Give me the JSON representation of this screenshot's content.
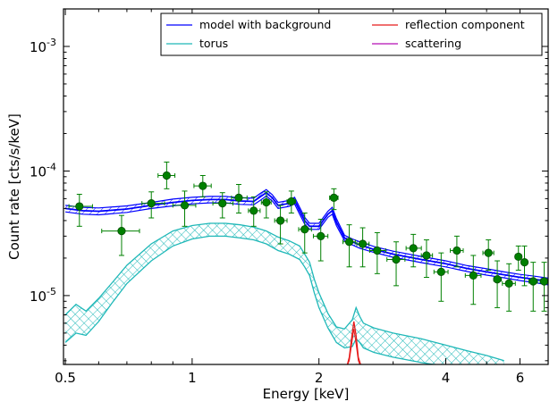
{
  "chart_data": {
    "type": "line",
    "xlabel": "Energy [keV]",
    "ylabel": "Count rate [cts/s/keV]",
    "xscale": "log",
    "yscale": "log",
    "xlim": [
      0.495,
      7.0
    ],
    "ylim": [
      2.8e-06,
      0.002
    ],
    "x_ticks": [
      {
        "value": 0.5,
        "label": "0.5"
      },
      {
        "value": 1,
        "label": "1"
      },
      {
        "value": 2,
        "label": "2"
      },
      {
        "value": 4,
        "label": "4"
      },
      {
        "value": 6,
        "label": "6"
      }
    ],
    "y_ticks": [
      {
        "value": 1e-05,
        "base": "10",
        "exp": "-5"
      },
      {
        "value": 0.0001,
        "base": "10",
        "exp": "-4"
      },
      {
        "value": 0.001,
        "base": "10",
        "exp": "-3"
      }
    ],
    "legend_position": "top-right",
    "legend_columns": 2,
    "series": [
      {
        "name": "model with background",
        "color": "#0000ff",
        "style": "line",
        "hatch": "diagonal",
        "x": [
          0.5,
          0.55,
          0.6,
          0.7,
          0.8,
          0.9,
          1.0,
          1.1,
          1.2,
          1.3,
          1.4,
          1.45,
          1.5,
          1.55,
          1.6,
          1.7,
          1.75,
          1.8,
          1.85,
          1.9,
          2.0,
          2.1,
          2.15,
          2.2,
          2.3,
          2.4,
          2.5,
          2.7,
          3.0,
          3.5,
          4.0,
          4.5,
          5.0,
          5.5,
          6.0,
          6.5,
          7.0
        ],
        "y": [
          5e-05,
          4.8e-05,
          4.75e-05,
          4.95e-05,
          5.3e-05,
          5.6e-05,
          5.8e-05,
          5.9e-05,
          5.9e-05,
          5.75e-05,
          5.7e-05,
          6.2e-05,
          6.7e-05,
          6.1e-05,
          5.3e-05,
          5.5e-05,
          5.8e-05,
          4.8e-05,
          4e-05,
          3.6e-05,
          3.6e-05,
          4.5e-05,
          4.8e-05,
          3.9e-05,
          2.9e-05,
          2.7e-05,
          2.55e-05,
          2.35e-05,
          2.15e-05,
          1.95e-05,
          1.8e-05,
          1.65e-05,
          1.55e-05,
          1.47e-05,
          1.4e-05,
          1.35e-05,
          1.3e-05
        ],
        "y_low": [
          4.7e-05,
          4.5e-05,
          4.45e-05,
          4.65e-05,
          5e-05,
          5.25e-05,
          5.45e-05,
          5.55e-05,
          5.55e-05,
          5.4e-05,
          5.35e-05,
          5.8e-05,
          6.3e-05,
          5.75e-05,
          5e-05,
          5.2e-05,
          5.45e-05,
          4.5e-05,
          3.75e-05,
          3.4e-05,
          3.4e-05,
          4.25e-05,
          4.5e-05,
          3.65e-05,
          2.75e-05,
          2.55e-05,
          2.4e-05,
          2.22e-05,
          2.03e-05,
          1.84e-05,
          1.7e-05,
          1.56e-05,
          1.46e-05,
          1.39e-05,
          1.32e-05,
          1.27e-05,
          1.22e-05
        ],
        "y_high": [
          5.3e-05,
          5.1e-05,
          5.05e-05,
          5.25e-05,
          5.6e-05,
          5.95e-05,
          6.15e-05,
          6.25e-05,
          6.25e-05,
          6.1e-05,
          6.05e-05,
          6.6e-05,
          7.1e-05,
          6.45e-05,
          5.6e-05,
          5.8e-05,
          6.15e-05,
          5.1e-05,
          4.25e-05,
          3.8e-05,
          3.8e-05,
          4.75e-05,
          5.1e-05,
          4.15e-05,
          3.05e-05,
          2.85e-05,
          2.7e-05,
          2.48e-05,
          2.27e-05,
          2.06e-05,
          1.9e-05,
          1.74e-05,
          1.64e-05,
          1.55e-05,
          1.48e-05,
          1.43e-05,
          1.38e-05
        ]
      },
      {
        "name": "torus",
        "color": "#1fb8b8",
        "style": "band",
        "hatch": "cross",
        "x": [
          0.5,
          0.53,
          0.56,
          0.6,
          0.65,
          0.7,
          0.8,
          0.9,
          1.0,
          1.1,
          1.2,
          1.3,
          1.4,
          1.5,
          1.6,
          1.7,
          1.8,
          1.85,
          1.9,
          1.95,
          2.0,
          2.1,
          2.2,
          2.3,
          2.4,
          2.45,
          2.5,
          2.55,
          2.7,
          3.0,
          3.5,
          4.0,
          4.5,
          5.0,
          5.5
        ],
        "y_low": [
          4.2e-06,
          5e-06,
          4.8e-06,
          6.2e-06,
          9e-06,
          1.25e-05,
          1.9e-05,
          2.5e-05,
          2.85e-05,
          3e-05,
          3e-05,
          2.9e-05,
          2.8e-05,
          2.6e-05,
          2.3e-05,
          2.15e-05,
          1.95e-05,
          1.7e-05,
          1.45e-05,
          1.05e-05,
          8e-06,
          5.5e-06,
          4.2e-06,
          3.8e-06,
          3.9e-06,
          4.5e-06,
          4.2e-06,
          3.8e-06,
          3.5e-06,
          3.2e-06,
          2.9e-06,
          2.7e-06,
          2.5e-06,
          2.4e-06,
          2.3e-06
        ],
        "y_high": [
          7e-06,
          8.5e-06,
          7.5e-06,
          9.5e-06,
          1.3e-05,
          1.75e-05,
          2.6e-05,
          3.3e-05,
          3.65e-05,
          3.8e-05,
          3.8e-05,
          3.7e-05,
          3.55e-05,
          3.3e-05,
          2.95e-05,
          2.75e-05,
          2.5e-05,
          2.15e-05,
          1.85e-05,
          1.35e-05,
          1.05e-05,
          7.2e-06,
          5.6e-06,
          5.4e-06,
          6.4e-06,
          8e-06,
          6.8e-06,
          6e-06,
          5.5e-06,
          5e-06,
          4.5e-06,
          4e-06,
          3.6e-06,
          3.3e-06,
          3e-06
        ]
      },
      {
        "name": "reflection component",
        "color": "#e61a1a",
        "style": "line",
        "x": [
          2.33,
          2.36,
          2.39,
          2.42,
          2.45,
          2.48,
          2.51,
          2.54
        ],
        "y": [
          2.7e-06,
          3.2e-06,
          4.5e-06,
          6.2e-06,
          4.8e-06,
          3.2e-06,
          2.8e-06,
          2.7e-06
        ],
        "y2": [
          2.7e-06,
          3e-06,
          4e-06,
          5.4e-06,
          4.1e-06,
          3e-06,
          2.7e-06,
          2.7e-06
        ]
      },
      {
        "name": "scattering",
        "color": "#b30fb3",
        "style": "line",
        "x": [],
        "y": []
      }
    ],
    "data_points": {
      "color": "#008000",
      "edge": "#004d00",
      "points": [
        {
          "x": 0.54,
          "y": 5.2e-05,
          "xlo": 0.51,
          "xhi": 0.58,
          "ylo": 3.6e-05,
          "yhi": 6.5e-05
        },
        {
          "x": 0.68,
          "y": 3.3e-05,
          "xlo": 0.61,
          "xhi": 0.75,
          "ylo": 2.1e-05,
          "yhi": 4.4e-05
        },
        {
          "x": 0.8,
          "y": 5.5e-05,
          "xlo": 0.76,
          "xhi": 0.86,
          "ylo": 4.2e-05,
          "yhi": 6.8e-05
        },
        {
          "x": 0.87,
          "y": 9.2e-05,
          "xlo": 0.83,
          "xhi": 0.91,
          "ylo": 7.2e-05,
          "yhi": 0.000118
        },
        {
          "x": 0.96,
          "y": 5.3e-05,
          "xlo": 0.9,
          "xhi": 1.02,
          "ylo": 3.6e-05,
          "yhi": 6.9e-05
        },
        {
          "x": 1.06,
          "y": 7.6e-05,
          "xlo": 1.01,
          "xhi": 1.11,
          "ylo": 6.2e-05,
          "yhi": 9.2e-05
        },
        {
          "x": 1.18,
          "y": 5.5e-05,
          "xlo": 1.12,
          "xhi": 1.25,
          "ylo": 4.2e-05,
          "yhi": 6.7e-05
        },
        {
          "x": 1.29,
          "y": 6.1e-05,
          "xlo": 1.24,
          "xhi": 1.35,
          "ylo": 4.6e-05,
          "yhi": 7.8e-05
        },
        {
          "x": 1.4,
          "y": 4.8e-05,
          "xlo": 1.36,
          "xhi": 1.45,
          "ylo": 3.6e-05,
          "yhi": 6.2e-05
        },
        {
          "x": 1.5,
          "y": 5.6e-05,
          "xlo": 1.46,
          "xhi": 1.54,
          "ylo": 4.2e-05,
          "yhi": 6.8e-05
        },
        {
          "x": 1.62,
          "y": 4e-05,
          "xlo": 1.57,
          "xhi": 1.68,
          "ylo": 2.6e-05,
          "yhi": 5.3e-05
        },
        {
          "x": 1.72,
          "y": 5.7e-05,
          "xlo": 1.68,
          "xhi": 1.76,
          "ylo": 4.6e-05,
          "yhi": 6.9e-05
        },
        {
          "x": 1.85,
          "y": 3.4e-05,
          "xlo": 1.79,
          "xhi": 1.92,
          "ylo": 2.2e-05,
          "yhi": 4.6e-05
        },
        {
          "x": 2.02,
          "y": 3e-05,
          "xlo": 1.94,
          "xhi": 2.1,
          "ylo": 1.9e-05,
          "yhi": 4.1e-05
        },
        {
          "x": 2.17,
          "y": 6.1e-05,
          "xlo": 2.12,
          "xhi": 2.22,
          "ylo": 4.9e-05,
          "yhi": 7.2e-05
        },
        {
          "x": 2.36,
          "y": 2.7e-05,
          "xlo": 2.28,
          "xhi": 2.44,
          "ylo": 1.7e-05,
          "yhi": 3.7e-05
        },
        {
          "x": 2.54,
          "y": 2.6e-05,
          "xlo": 2.46,
          "xhi": 2.63,
          "ylo": 1.7e-05,
          "yhi": 3.5e-05
        },
        {
          "x": 2.75,
          "y": 2.3e-05,
          "xlo": 2.64,
          "xhi": 2.88,
          "ylo": 1.5e-05,
          "yhi": 3.2e-05
        },
        {
          "x": 3.05,
          "y": 1.95e-05,
          "xlo": 2.9,
          "xhi": 3.2,
          "ylo": 1.2e-05,
          "yhi": 2.7e-05
        },
        {
          "x": 3.35,
          "y": 2.4e-05,
          "xlo": 3.22,
          "xhi": 3.5,
          "ylo": 1.7e-05,
          "yhi": 3.1e-05
        },
        {
          "x": 3.6,
          "y": 2.1e-05,
          "xlo": 3.5,
          "xhi": 3.72,
          "ylo": 1.4e-05,
          "yhi": 2.8e-05
        },
        {
          "x": 3.9,
          "y": 1.55e-05,
          "xlo": 3.75,
          "xhi": 4.05,
          "ylo": 9e-06,
          "yhi": 2.2e-05
        },
        {
          "x": 4.25,
          "y": 2.3e-05,
          "xlo": 4.1,
          "xhi": 4.4,
          "ylo": 1.7e-05,
          "yhi": 3e-05
        },
        {
          "x": 4.65,
          "y": 1.45e-05,
          "xlo": 4.45,
          "xhi": 4.85,
          "ylo": 8.5e-06,
          "yhi": 2.1e-05
        },
        {
          "x": 5.05,
          "y": 2.2e-05,
          "xlo": 4.9,
          "xhi": 5.2,
          "ylo": 1.6e-05,
          "yhi": 2.8e-05
        },
        {
          "x": 5.3,
          "y": 1.35e-05,
          "xlo": 5.2,
          "xhi": 5.42,
          "ylo": 8e-06,
          "yhi": 1.9e-05
        },
        {
          "x": 5.65,
          "y": 1.25e-05,
          "xlo": 5.45,
          "xhi": 5.85,
          "ylo": 7.5e-06,
          "yhi": 1.8e-05
        },
        {
          "x": 5.95,
          "y": 2.05e-05,
          "xlo": 5.85,
          "xhi": 6.05,
          "ylo": 1.6e-05,
          "yhi": 2.5e-05
        },
        {
          "x": 6.15,
          "y": 1.85e-05,
          "xlo": 6.05,
          "xhi": 6.25,
          "ylo": 1.2e-05,
          "yhi": 2.5e-05
        },
        {
          "x": 6.45,
          "y": 1.3e-05,
          "xlo": 6.3,
          "xhi": 6.6,
          "ylo": 7.5e-06,
          "yhi": 1.85e-05
        },
        {
          "x": 6.85,
          "y": 1.3e-05,
          "xlo": 6.7,
          "xhi": 7.0,
          "ylo": 7.5e-06,
          "yhi": 1.85e-05
        }
      ]
    }
  }
}
